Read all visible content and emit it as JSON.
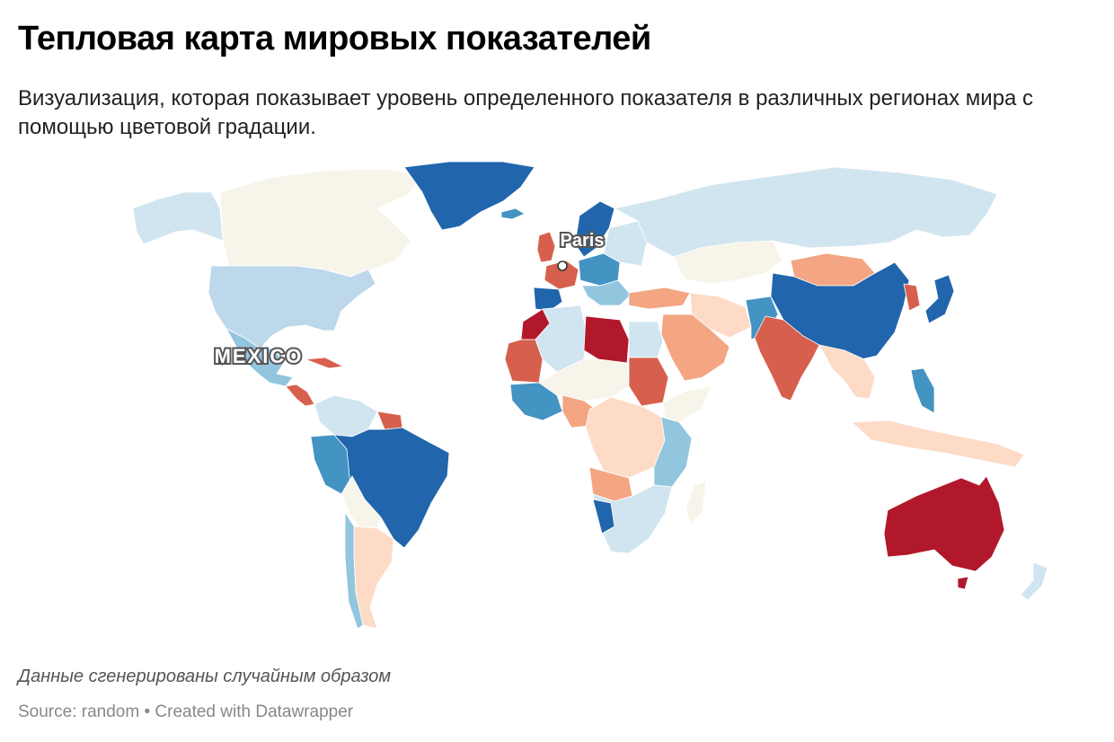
{
  "header": {
    "title": "Тепловая карта мировых показателей",
    "description": "Визуализация, которая показывает уровень определенного показателя в различных регионах мира с помощью цветовой градации."
  },
  "map": {
    "labels": {
      "city": "Paris",
      "country": "MEXICO"
    },
    "colors": {
      "dark_red": "#b2182b",
      "red": "#d6604d",
      "light_red": "#f4a582",
      "pale_red": "#fddbc7",
      "neutral": "#f7f4e9",
      "pale_blue": "#d1e5f0",
      "light_blue": "#92c5de",
      "blue": "#4393c3",
      "dark_blue": "#2166ac",
      "background": "#ffffff"
    }
  },
  "footer": {
    "notes": "Данные сгенерированы случайным образом",
    "source_prefix": "Source: random",
    "separator": " • ",
    "credit": "Created with Datawrapper"
  }
}
